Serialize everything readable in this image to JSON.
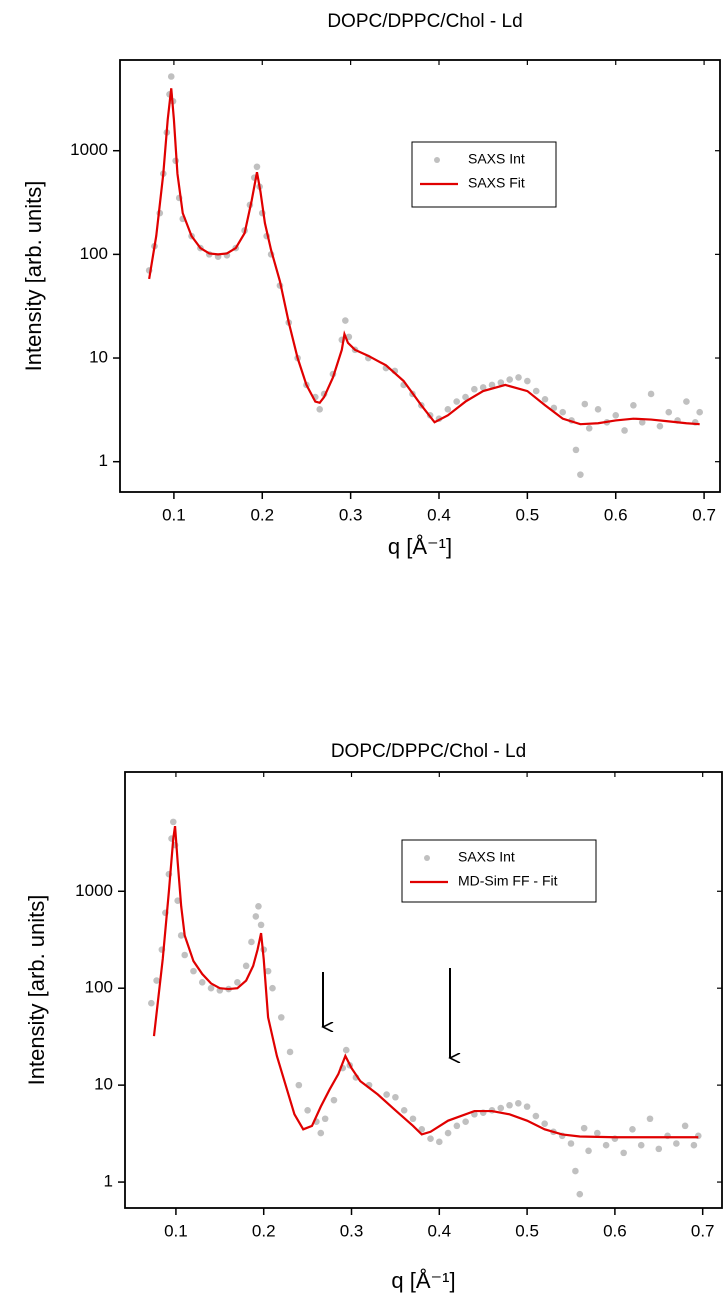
{
  "chart_data": [
    {
      "type": "scatter",
      "title": "DOPC/DPPC/Chol - Ld",
      "xlabel": "q [Å⁻¹]",
      "ylabel": "Intensity [arb. units]",
      "xlim": [
        0.039,
        0.718
      ],
      "ylim": [
        0.51,
        7500
      ],
      "log_y": true,
      "xticks": [
        0.1,
        0.2,
        0.3,
        0.4,
        0.5,
        0.6,
        0.7
      ],
      "yticks": [
        1,
        10,
        100,
        1000
      ],
      "legend": "upper center",
      "series": [
        {
          "name": "SAXS Int",
          "color": "#c0c0c0",
          "mode": "markers",
          "x": [
            0.072,
            0.078,
            0.084,
            0.088,
            0.092,
            0.095,
            0.097,
            0.099,
            0.102,
            0.106,
            0.11,
            0.12,
            0.13,
            0.14,
            0.15,
            0.16,
            0.17,
            0.18,
            0.186,
            0.191,
            0.194,
            0.197,
            0.2,
            0.205,
            0.21,
            0.22,
            0.23,
            0.24,
            0.25,
            0.26,
            0.265,
            0.27,
            0.28,
            0.29,
            0.294,
            0.298,
            0.305,
            0.32,
            0.34,
            0.35,
            0.36,
            0.37,
            0.38,
            0.39,
            0.4,
            0.41,
            0.42,
            0.43,
            0.44,
            0.45,
            0.46,
            0.47,
            0.48,
            0.49,
            0.5,
            0.51,
            0.52,
            0.53,
            0.54,
            0.55,
            0.555,
            0.56,
            0.565,
            0.57,
            0.58,
            0.59,
            0.6,
            0.61,
            0.62,
            0.63,
            0.64,
            0.65,
            0.66,
            0.67,
            0.68,
            0.69,
            0.695
          ],
          "values": [
            70,
            120,
            250,
            600,
            1500,
            3500,
            5200,
            3000,
            800,
            350,
            220,
            150,
            115,
            100,
            95,
            98,
            115,
            170,
            300,
            550,
            700,
            450,
            250,
            150,
            100,
            50,
            22,
            10,
            5.5,
            4.2,
            3.2,
            4.5,
            7,
            15,
            23,
            16,
            12,
            10,
            8,
            7.5,
            5.5,
            4.5,
            3.5,
            2.8,
            2.6,
            3.2,
            3.8,
            4.2,
            5,
            5.2,
            5.5,
            5.8,
            6.2,
            6.5,
            6,
            4.8,
            4,
            3.3,
            3,
            2.5,
            1.3,
            0.75,
            3.6,
            2.1,
            3.2,
            2.4,
            2.8,
            2,
            3.5,
            2.4,
            4.5,
            2.2,
            3,
            2.5,
            3.8,
            2.4,
            3
          ]
        },
        {
          "name": "SAXS Fit",
          "color": "#e00000",
          "mode": "line",
          "x": [
            0.072,
            0.08,
            0.088,
            0.093,
            0.097,
            0.1,
            0.104,
            0.11,
            0.12,
            0.13,
            0.14,
            0.15,
            0.16,
            0.17,
            0.18,
            0.188,
            0.194,
            0.198,
            0.203,
            0.21,
            0.22,
            0.23,
            0.24,
            0.25,
            0.26,
            0.265,
            0.27,
            0.28,
            0.29,
            0.293,
            0.297,
            0.305,
            0.32,
            0.34,
            0.36,
            0.38,
            0.395,
            0.41,
            0.43,
            0.45,
            0.475,
            0.5,
            0.52,
            0.54,
            0.56,
            0.58,
            0.6,
            0.62,
            0.64,
            0.66,
            0.68,
            0.695
          ],
          "values": [
            58,
            150,
            600,
            2000,
            4000,
            2000,
            600,
            250,
            150,
            115,
            102,
            100,
            102,
            115,
            160,
            330,
            620,
            400,
            200,
            110,
            55,
            22,
            10,
            5.5,
            3.8,
            3.7,
            4.2,
            6.5,
            12,
            17,
            14,
            12,
            10.5,
            8.5,
            6,
            3.5,
            2.4,
            2.8,
            3.8,
            4.8,
            5.5,
            4.8,
            3.5,
            2.6,
            2.3,
            2.35,
            2.5,
            2.6,
            2.55,
            2.45,
            2.35,
            2.3
          ]
        }
      ]
    },
    {
      "type": "scatter",
      "title": "DOPC/DPPC/Chol - Ld",
      "xlabel": "q [Å⁻¹]",
      "ylabel": "Intensity [arb. units]",
      "xlim": [
        0.042,
        0.722
      ],
      "ylim": [
        0.54,
        17000
      ],
      "log_y": true,
      "xticks": [
        0.1,
        0.2,
        0.3,
        0.4,
        0.5,
        0.6,
        0.7
      ],
      "yticks": [
        1,
        10,
        100,
        1000
      ],
      "legend": "upper center",
      "series": [
        {
          "name": "SAXS Int",
          "color": "#c0c0c0",
          "mode": "markers",
          "x": [
            0.072,
            0.078,
            0.084,
            0.088,
            0.092,
            0.095,
            0.097,
            0.099,
            0.102,
            0.106,
            0.11,
            0.12,
            0.13,
            0.14,
            0.15,
            0.16,
            0.17,
            0.18,
            0.186,
            0.191,
            0.194,
            0.197,
            0.2,
            0.205,
            0.21,
            0.22,
            0.23,
            0.24,
            0.25,
            0.26,
            0.265,
            0.27,
            0.28,
            0.29,
            0.294,
            0.298,
            0.305,
            0.32,
            0.34,
            0.35,
            0.36,
            0.37,
            0.38,
            0.39,
            0.4,
            0.41,
            0.42,
            0.43,
            0.44,
            0.45,
            0.46,
            0.47,
            0.48,
            0.49,
            0.5,
            0.51,
            0.52,
            0.53,
            0.54,
            0.55,
            0.555,
            0.56,
            0.565,
            0.57,
            0.58,
            0.59,
            0.6,
            0.61,
            0.62,
            0.63,
            0.64,
            0.65,
            0.66,
            0.67,
            0.68,
            0.69,
            0.695
          ],
          "values": [
            70,
            120,
            250,
            600,
            1500,
            3500,
            5200,
            3000,
            800,
            350,
            220,
            150,
            115,
            100,
            95,
            98,
            115,
            170,
            300,
            550,
            700,
            450,
            250,
            150,
            100,
            50,
            22,
            10,
            5.5,
            4.2,
            3.2,
            4.5,
            7,
            15,
            23,
            16,
            12,
            10,
            8,
            7.5,
            5.5,
            4.5,
            3.5,
            2.8,
            2.6,
            3.2,
            3.8,
            4.2,
            5,
            5.2,
            5.5,
            5.8,
            6.2,
            6.5,
            6,
            4.8,
            4,
            3.3,
            3,
            2.5,
            1.3,
            0.75,
            3.6,
            2.1,
            3.2,
            2.4,
            2.8,
            2,
            3.5,
            2.4,
            4.5,
            2.2,
            3,
            2.5,
            3.8,
            2.4,
            3
          ]
        },
        {
          "name": "MD-Sim FF - Fit",
          "color": "#e00000",
          "mode": "line",
          "x": [
            0.075,
            0.085,
            0.092,
            0.097,
            0.099,
            0.102,
            0.106,
            0.11,
            0.12,
            0.13,
            0.14,
            0.15,
            0.16,
            0.17,
            0.18,
            0.188,
            0.193,
            0.197,
            0.2,
            0.205,
            0.215,
            0.225,
            0.235,
            0.245,
            0.255,
            0.265,
            0.275,
            0.285,
            0.293,
            0.3,
            0.31,
            0.33,
            0.35,
            0.37,
            0.38,
            0.39,
            0.41,
            0.44,
            0.46,
            0.48,
            0.5,
            0.52,
            0.54,
            0.56,
            0.6,
            0.65,
            0.695
          ],
          "values": [
            32,
            200,
            1000,
            3500,
            4700,
            2000,
            700,
            350,
            190,
            140,
            112,
            100,
            98,
            100,
            120,
            170,
            250,
            370,
            200,
            50,
            20,
            10,
            5,
            3.5,
            3.8,
            6,
            9,
            13,
            20,
            15,
            11,
            8,
            5.5,
            3.8,
            3.1,
            3.3,
            4.3,
            5.4,
            5.4,
            5,
            4.3,
            3.5,
            3.1,
            2.95,
            2.9,
            2.9,
            2.9
          ]
        }
      ]
    }
  ]
}
